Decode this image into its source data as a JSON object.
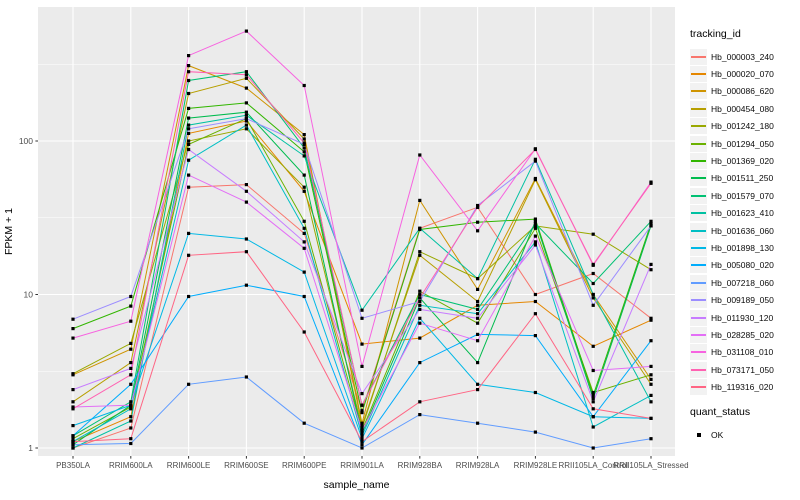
{
  "figure": {
    "xlabel": "sample_name",
    "ylabel": "FPKM + 1",
    "y_tick_labels": [
      "1",
      "10",
      "100"
    ],
    "panel_bg": "#ebebeb",
    "grid_color": "#ffffff",
    "tick_label_color": "#4d4d4d",
    "point_color": "#000000",
    "legend": {
      "tracking_title": "tracking_id",
      "quant_title": "quant_status",
      "quant_items": [
        {
          "label": "OK",
          "shape": "filled-square"
        }
      ]
    }
  },
  "chart_data": {
    "type": "line",
    "yscale": "log10",
    "grid": true,
    "legend_position": "right",
    "title": "",
    "xlabel": "sample_name",
    "ylabel": "FPKM + 1",
    "y_ticks": [
      1,
      10,
      100
    ],
    "ylim": [
      1,
      560
    ],
    "categories": [
      "PB350LA",
      "RRIM600LA",
      "RRIM600LE",
      "RRIM600SE",
      "RRIM600PE",
      "RRIM901LA",
      "RRIM928BA",
      "RRIM928LA",
      "RRIM928LE",
      "RRII105LA_Control",
      "RRII105LA_Stressed"
    ],
    "series": [
      {
        "name": "Hb_000003_240",
        "color": "#F8766D",
        "values": [
          1.0,
          1.35,
          50,
          52,
          25,
          1.75,
          27,
          37,
          10,
          13.7,
          7.0
        ]
      },
      {
        "name": "Hb_000020_070",
        "color": "#E58700",
        "values": [
          1.1,
          1.6,
          112,
          135,
          47,
          4.75,
          5.2,
          8.5,
          9.0,
          4.6,
          6.8
        ]
      },
      {
        "name": "Hb_000086_620",
        "color": "#CF9400",
        "values": [
          3.0,
          4.4,
          310,
          221,
          110,
          1.45,
          41,
          10.8,
          57,
          10,
          2.8
        ]
      },
      {
        "name": "Hb_000454_080",
        "color": "#B79F00",
        "values": [
          2.0,
          3.6,
          204,
          256,
          103,
          1.4,
          18,
          9.0,
          56,
          9.5,
          2.6
        ]
      },
      {
        "name": "Hb_001242_180",
        "color": "#99A800",
        "values": [
          3.05,
          4.8,
          100,
          120,
          50,
          1.35,
          19,
          12.7,
          28,
          24.7,
          14.5
        ]
      },
      {
        "name": "Hb_001294_050",
        "color": "#6BB100",
        "values": [
          1.15,
          1.85,
          95,
          140,
          30,
          1.3,
          10.5,
          6.5,
          27,
          2.3,
          3.0
        ]
      },
      {
        "name": "Hb_001369_020",
        "color": "#32B600",
        "values": [
          6.0,
          8.4,
          163,
          177,
          85,
          1.7,
          26.5,
          29.6,
          31,
          2.2,
          29
        ]
      },
      {
        "name": "Hb_001511_250",
        "color": "#00BB4E",
        "values": [
          1.05,
          1.9,
          141,
          154,
          60,
          1.25,
          9.5,
          3.6,
          30,
          2.1,
          28
        ]
      },
      {
        "name": "Hb_001579_070",
        "color": "#00C073",
        "values": [
          1.2,
          2.0,
          248,
          283,
          90,
          1.9,
          10,
          8.0,
          29,
          11.8,
          30
        ]
      },
      {
        "name": "Hb_001623_410",
        "color": "#00C1A2",
        "values": [
          1.0,
          1.5,
          127,
          147,
          80,
          7.9,
          27,
          12.7,
          76,
          10,
          2.0
        ]
      },
      {
        "name": "Hb_001636_060",
        "color": "#00BFC4",
        "values": [
          1.1,
          1.8,
          75,
          127,
          27,
          1.2,
          8.5,
          7.5,
          22,
          1.37,
          2.2
        ]
      },
      {
        "name": "Hb_001898_130",
        "color": "#00B8E5",
        "values": [
          1.4,
          1.9,
          25,
          23,
          14,
          1.15,
          7.0,
          2.6,
          2.3,
          1.6,
          1.56
        ]
      },
      {
        "name": "Hb_005080_020",
        "color": "#00ACFC",
        "values": [
          1.2,
          2.6,
          9.7,
          11.5,
          9.7,
          1.05,
          3.6,
          5.5,
          5.4,
          1.6,
          5.0
        ]
      },
      {
        "name": "Hb_007218_060",
        "color": "#619CFF",
        "values": [
          1.05,
          1.07,
          2.6,
          2.9,
          1.45,
          1.0,
          1.65,
          1.45,
          1.27,
          1.0,
          1.15
        ]
      },
      {
        "name": "Hb_009189_050",
        "color": "#9C8DFF",
        "values": [
          6.9,
          9.7,
          120,
          140,
          95,
          7.0,
          9.0,
          38,
          74,
          8.5,
          28
        ]
      },
      {
        "name": "Hb_011930_120",
        "color": "#C77CFF",
        "values": [
          2.4,
          3.3,
          88,
          47,
          22,
          2.26,
          8.0,
          7.0,
          21,
          2.0,
          15.7
        ]
      },
      {
        "name": "Hb_028285_020",
        "color": "#E36EF6",
        "values": [
          1.85,
          1.9,
          60,
          40,
          20,
          1.3,
          6.5,
          5.0,
          24,
          3.2,
          3.4
        ]
      },
      {
        "name": "Hb_031108_010",
        "color": "#F763E0",
        "values": [
          5.2,
          6.7,
          360,
          520,
          230,
          3.4,
          81,
          26,
          89,
          15.5,
          54
        ]
      },
      {
        "name": "Hb_073171_050",
        "color": "#FF62B2",
        "values": [
          1.8,
          3.0,
          283,
          270,
          97,
          1.9,
          9.5,
          37,
          88,
          15.7,
          53
        ]
      },
      {
        "name": "Hb_119316_020",
        "color": "#FF6584",
        "values": [
          1.1,
          1.15,
          18,
          19,
          5.7,
          1.1,
          2.0,
          2.4,
          7.5,
          1.8,
          1.56
        ]
      }
    ]
  }
}
